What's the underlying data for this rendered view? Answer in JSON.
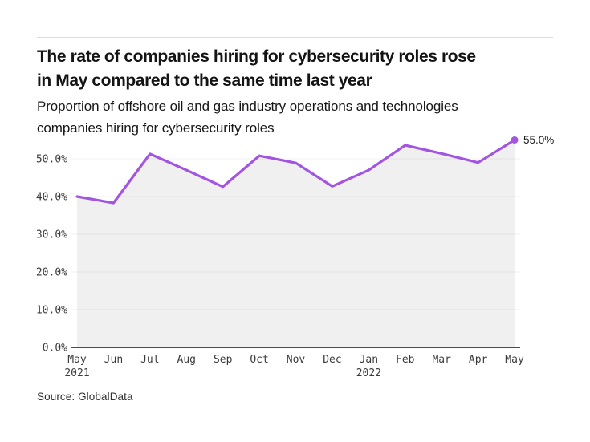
{
  "header": {
    "title_lines": [
      "The rate of companies hiring for cybersecurity roles rose",
      "in May compared to the same time last year"
    ],
    "subtitle_lines": [
      "Proportion of offshore oil and gas industry operations and technologies",
      "companies hiring for cybersecurity roles"
    ]
  },
  "footer": {
    "source": "Source: GlobalData"
  },
  "chart_data": {
    "type": "line",
    "title": "The rate of companies hiring for cybersecurity roles rose in May compared to the same time last year",
    "subtitle": "Proportion of offshore oil and gas industry operations and technologies companies hiring for cybersecurity roles",
    "x": [
      "May 2021",
      "Jun",
      "Jul",
      "Aug",
      "Sep",
      "Oct",
      "Nov",
      "Dec",
      "Jan 2022",
      "Feb",
      "Mar",
      "Apr",
      "May"
    ],
    "x_tick_labels": [
      "May",
      "Jun",
      "Jul",
      "Aug",
      "Sep",
      "Oct",
      "Nov",
      "Dec",
      "Jan",
      "Feb",
      "Mar",
      "Apr",
      "May"
    ],
    "x_year_rows": [
      {
        "index": 0,
        "label": "2021"
      },
      {
        "index": 8,
        "label": "2022"
      }
    ],
    "values": [
      40.0,
      38.3,
      51.3,
      47.0,
      42.6,
      50.8,
      48.9,
      42.7,
      47.0,
      53.6,
      51.4,
      49.0,
      55.0
    ],
    "unit": "%",
    "y_ticks": [
      0,
      10,
      20,
      30,
      40,
      50
    ],
    "y_tick_labels": [
      "0.0%",
      "10.0%",
      "20.0%",
      "30.0%",
      "40.0%",
      "50.0%"
    ],
    "ylim": [
      0,
      57
    ],
    "grid": true,
    "legend_position": "none",
    "last_point_label": "55.0%",
    "area_fill": true,
    "colors": {
      "line": "#a255e0",
      "area": "#f0f0f0",
      "axis": "#4d4d4d",
      "grid": "rgba(0,0,0,0.055)",
      "tick_text": "#3c3c3c",
      "annotation_text": "#1a1a1a"
    }
  }
}
